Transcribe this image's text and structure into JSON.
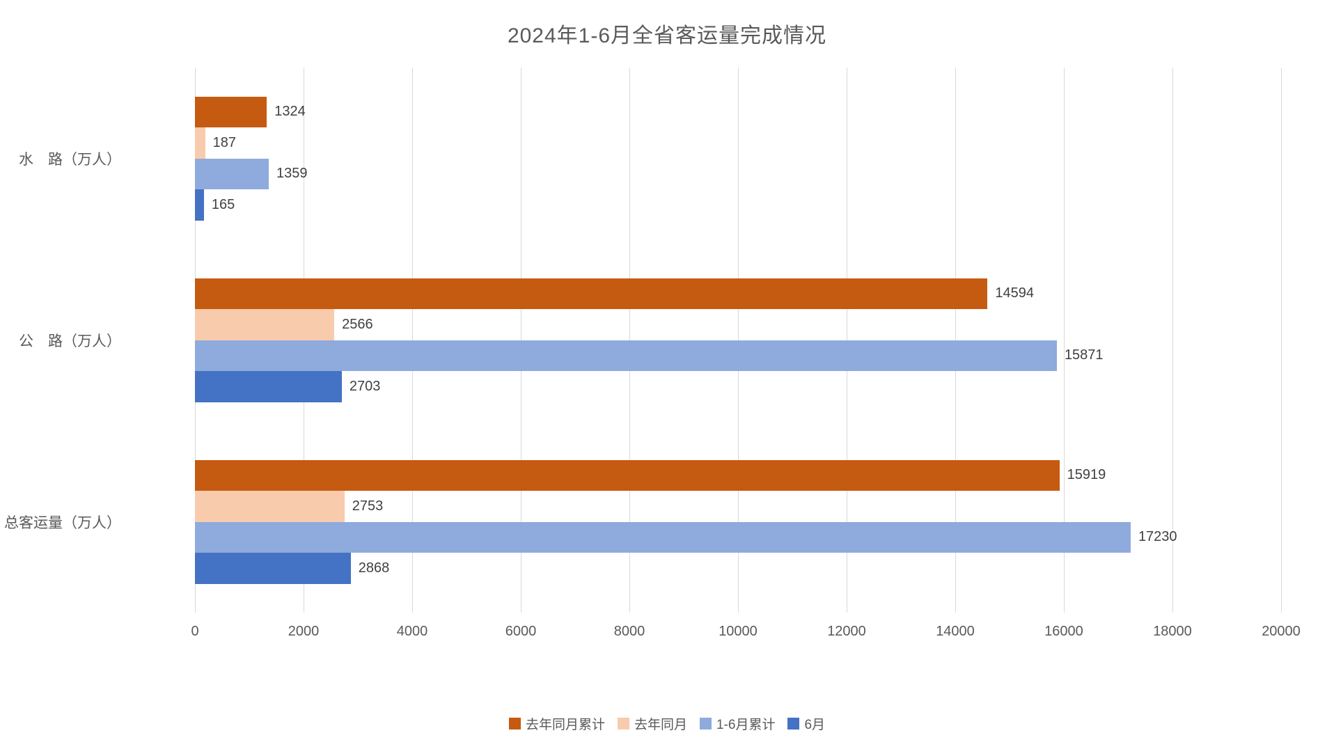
{
  "title": "2024年1-6月全省客运量完成情况",
  "chart_data": {
    "type": "bar",
    "orientation": "horizontal",
    "title": "2024年1-6月全省客运量完成情况",
    "categories": [
      "水　路（万人）",
      "公　路（万人）",
      "总客运量（万人）"
    ],
    "categories_order": "top-to-bottom",
    "series": [
      {
        "name": "去年同月累计",
        "color": "#C55A11",
        "values": [
          1324,
          14594,
          15919
        ]
      },
      {
        "name": "去年同月",
        "color": "#F8CBAD",
        "values": [
          187,
          2566,
          2753
        ]
      },
      {
        "name": "1-6月累计",
        "color": "#8FAADC",
        "values": [
          1359,
          15871,
          17230
        ]
      },
      {
        "name": "6月",
        "color": "#4472C4",
        "values": [
          165,
          2703,
          2868
        ]
      }
    ],
    "xlabel": "",
    "ylabel": "",
    "xlim": [
      0,
      20000
    ],
    "x_ticks": [
      0,
      2000,
      4000,
      6000,
      8000,
      10000,
      12000,
      14000,
      16000,
      18000,
      20000
    ],
    "grid": true,
    "gridline_color": "#D9D9D9",
    "value_labels": "outside-end",
    "legend_position": "bottom",
    "text_colors": {
      "title": "#595959",
      "axis": "#595959",
      "values": "#404040"
    }
  }
}
